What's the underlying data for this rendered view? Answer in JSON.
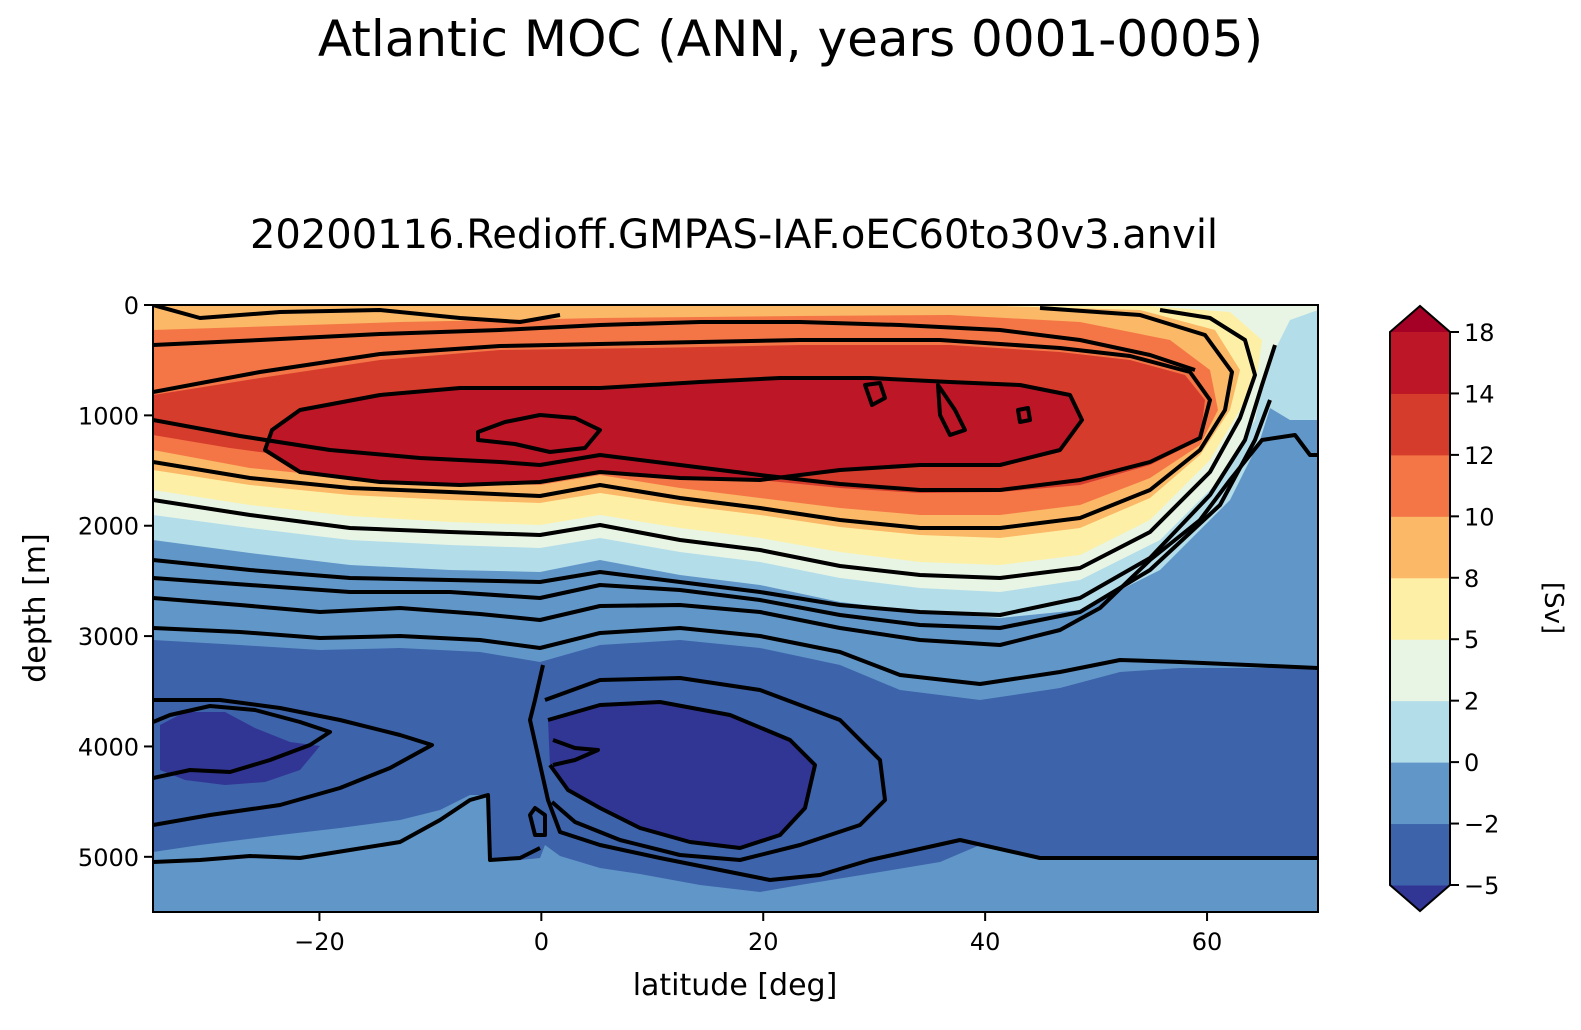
{
  "chart_data": {
    "type": "contourf",
    "title": "Atlantic MOC (ANN, years 0001-0005)",
    "subtitle": "20200116.Redioff.GMPAS-IAF.oEC60to30v3.anvil",
    "xlabel": "latitude [deg]",
    "ylabel": "depth [m]",
    "xlim": [
      -35,
      70
    ],
    "ylim": [
      5500,
      0
    ],
    "xticks": [
      {
        "value": -20,
        "label": "−20"
      },
      {
        "value": 0,
        "label": "0"
      },
      {
        "value": 20,
        "label": "20"
      },
      {
        "value": 40,
        "label": "40"
      },
      {
        "value": 60,
        "label": "60"
      }
    ],
    "yticks": [
      {
        "value": 0,
        "label": "0"
      },
      {
        "value": 1000,
        "label": "1000"
      },
      {
        "value": 2000,
        "label": "2000"
      },
      {
        "value": 3000,
        "label": "3000"
      },
      {
        "value": 4000,
        "label": "4000"
      },
      {
        "value": 5000,
        "label": "5000"
      }
    ],
    "colorbar": {
      "label": "[Sv]",
      "levels": [
        -5,
        -2,
        0,
        2,
        5,
        8,
        10,
        12,
        14,
        18
      ],
      "tick_labels": [
        "−5",
        "−2",
        "0",
        "2",
        "5",
        "8",
        "10",
        "12",
        "14",
        "18"
      ],
      "colors": [
        "#3d63aa",
        "#6196c8",
        "#b4ddea",
        "#e8f5e4",
        "#fdf0a6",
        "#fbb867",
        "#f47646",
        "#d63c2c",
        "#bd1727"
      ],
      "under_color": "#313695",
      "over_color": "#a50026"
    },
    "colormap": "RdYlBu_r",
    "contour_lines": "black",
    "fields": [
      {
        "name": "upper_cell_max",
        "value_sv": 15,
        "lat_range": [
          -25,
          50
        ],
        "depth_range": [
          700,
          1650
        ]
      },
      {
        "name": "abyssal_cell_min_south",
        "value_sv": -6,
        "lat_range": [
          -35,
          -20
        ],
        "depth_range": [
          3700,
          4300
        ]
      },
      {
        "name": "abyssal_cell_min_north",
        "value_sv": -7,
        "lat_range": [
          0,
          25
        ],
        "depth_range": [
          3650,
          4750
        ]
      }
    ]
  },
  "colors": {
    "background": "#ffffff",
    "contour": "#000000"
  }
}
